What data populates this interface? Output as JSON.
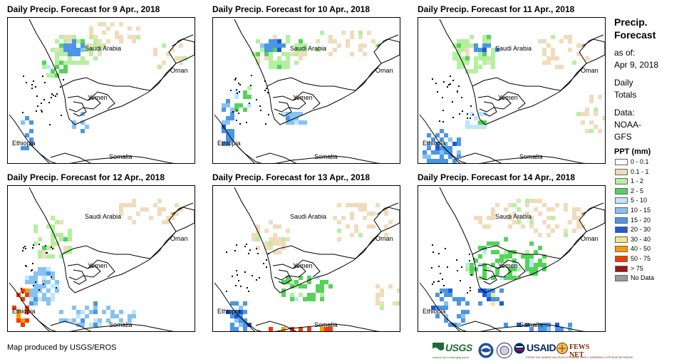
{
  "panels": [
    {
      "title": "Daily Precip. Forecast for 9 Apr., 2018",
      "date": "9 Apr., 2018"
    },
    {
      "title": "Daily Precip. Forecast for 10 Apr., 2018",
      "date": "10 Apr., 2018"
    },
    {
      "title": "Daily Precip. Forecast for 11 Apr., 2018",
      "date": "11 Apr., 2018"
    },
    {
      "title": "Daily Precip. Forecast for 12 Apr., 2018",
      "date": "12 Apr., 2018"
    },
    {
      "title": "Daily Precip. Forecast for 13 Apr., 2018",
      "date": "13 Apr., 2018"
    },
    {
      "title": "Daily Precip. Forecast for 14 Apr., 2018",
      "date": "14 Apr., 2018"
    }
  ],
  "country_labels": {
    "saudi_arabia": "Saudi Arabia",
    "oman": "Oman",
    "yemen": "Yemen",
    "ethiopia": "Ethiopia",
    "somalia": "Somalia"
  },
  "legend": {
    "title_line1": "Precip.",
    "title_line2": "Forecast",
    "asof_label": "as of:",
    "asof_date": "Apr 9, 2018",
    "totals_line1": "Daily",
    "totals_line2": "Totals",
    "data_label": "Data:",
    "data_source_line1": "NOAA-",
    "data_source_line2": "GFS",
    "units_label": "PPT (mm)",
    "classes": [
      {
        "label": "0 - 0.1",
        "color": "#ffffff"
      },
      {
        "label": "0.1 - 1",
        "color": "#f0dcbc"
      },
      {
        "label": "1 - 2",
        "color": "#b4f0a0"
      },
      {
        "label": "2 - 5",
        "color": "#55d25a"
      },
      {
        "label": "5 - 10",
        "color": "#bfe6fa"
      },
      {
        "label": "10 - 15",
        "color": "#87c3f0"
      },
      {
        "label": "15 - 20",
        "color": "#4b96e6"
      },
      {
        "label": "20 - 30",
        "color": "#1e5adc"
      },
      {
        "label": "30 - 40",
        "color": "#f5e68c"
      },
      {
        "label": "40 - 50",
        "color": "#fa9b00"
      },
      {
        "label": "50 - 75",
        "color": "#f03c00"
      },
      {
        "label": "> 75",
        "color": "#a01414"
      },
      {
        "label": "No Data",
        "color": "#9a9a9a"
      }
    ]
  },
  "credit": "Map produced by USGS/EROS",
  "logos": {
    "usgs": {
      "name": "USGS",
      "tagline": "science for a changing world",
      "icon": "usgs-wave-icon"
    },
    "noaa": {
      "icon": "noaa-seal-icon"
    },
    "dhs": {
      "icon": "agency-seal-icon"
    },
    "usaid": {
      "name": "USAID",
      "tagline": "FROM THE AMERICAN PEOPLE",
      "icon": "usaid-flag-icon"
    },
    "fews": {
      "name": "FEWS NET",
      "tagline": "FAMINE EARLY WARNING SYSTEMS NETWORK",
      "icon": "fews-globe-icon"
    }
  }
}
